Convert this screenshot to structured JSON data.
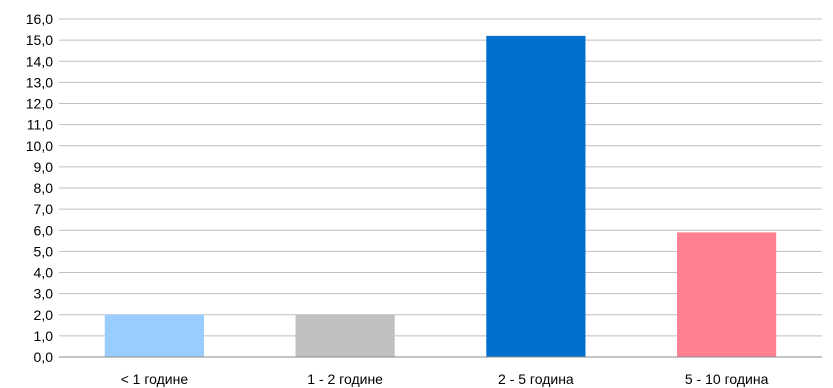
{
  "chart_data": {
    "type": "bar",
    "title": "",
    "xlabel": "",
    "ylabel": "",
    "categories": [
      "< 1 године",
      "1 - 2 године",
      "2 - 5 година",
      "5 - 10 година"
    ],
    "values": [
      2.0,
      2.0,
      15.2,
      5.9
    ],
    "colors": [
      "#99ccff",
      "#c0c0c0",
      "#0070cc",
      "#ff8090"
    ],
    "ylim": [
      0,
      16
    ],
    "ytick_step": 1,
    "ytick_labels": [
      "0,0",
      "1,0",
      "2,0",
      "3,0",
      "4,0",
      "5,0",
      "6,0",
      "7,0",
      "8,0",
      "9,0",
      "10,0",
      "11,0",
      "12,0",
      "13,0",
      "14,0",
      "15,0",
      "16,0"
    ],
    "grid": true,
    "gridline_color": "#bfbfbf",
    "legend": "none"
  }
}
